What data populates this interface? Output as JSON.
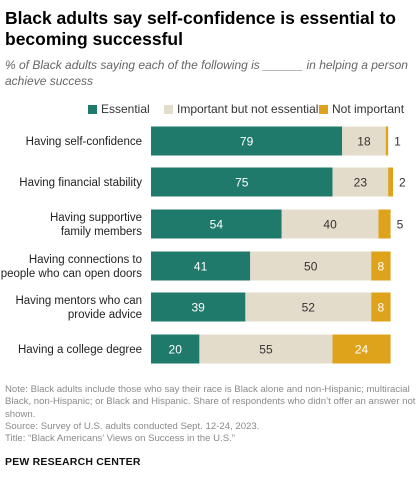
{
  "title": "Black adults say self-confidence is essential to becoming successful",
  "subtitle": "% of Black adults saying each of the following is ______ in helping a person achieve success",
  "colors": {
    "essential": "#1f7a6b",
    "important": "#e3dccb",
    "not_important": "#dfa31b",
    "text_on_dark": "#ffffff",
    "text_on_light": "#333333"
  },
  "chart_data": {
    "type": "bar",
    "orientation": "horizontal",
    "stacked": true,
    "categories": [
      "Having self-confidence",
      "Having financial stability",
      "Having supportive family members",
      "Having connections to people who can open doors",
      "Having mentors who can provide advice",
      "Having a college degree"
    ],
    "category_lines": [
      [
        "Having self-confidence"
      ],
      [
        "Having financial stability"
      ],
      [
        "Having supportive",
        "family members"
      ],
      [
        "Having connections to",
        "people who can open doors"
      ],
      [
        "Having mentors who can",
        "provide advice"
      ],
      [
        "Having a college degree"
      ]
    ],
    "series": [
      {
        "name": "Essential",
        "values": [
          79,
          75,
          54,
          41,
          39,
          20
        ]
      },
      {
        "name": "Important but not essential",
        "values": [
          18,
          23,
          40,
          50,
          52,
          55
        ]
      },
      {
        "name": "Not important",
        "values": [
          1,
          2,
          5,
          8,
          8,
          24
        ]
      }
    ],
    "legend_position": "top",
    "grid": false
  },
  "notes": [
    "Note: Black adults include those who say their race is Black alone and non-Hispanic; multiracial Black, non-Hispanic; or Black and Hispanic. Share of respondents who didn’t offer an answer not shown.",
    "Source: Survey of U.S. adults conducted Sept. 12-24, 2023.",
    "Title: “Black Americans’ Views on Success in the U.S.”"
  ],
  "brand": "PEW RESEARCH CENTER"
}
